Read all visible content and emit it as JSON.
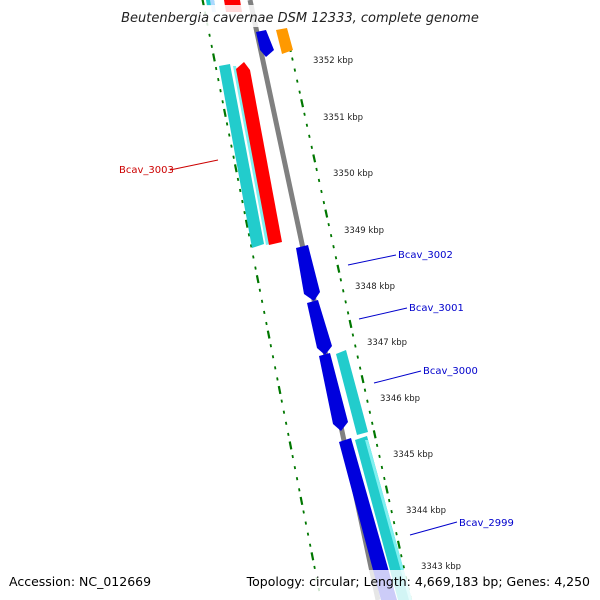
{
  "title": "Beutenbergia cavernae DSM 12333, complete genome",
  "footer": {
    "accession": "Accession: NC_012669",
    "summary": "Topology: circular; Length: 4,669,183 bp; Genes: 4,250"
  },
  "colors": {
    "forward_cds": "#ff0000",
    "reverse_cds": "#0000dd",
    "rna": "#ff9900",
    "forward_feature": "#22cccc",
    "ruler": "#007700",
    "backbone": "#808080"
  },
  "ticks": [
    {
      "label": "3352 kbp"
    },
    {
      "label": "3351 kbp"
    },
    {
      "label": "3350 kbp"
    },
    {
      "label": "3349 kbp"
    },
    {
      "label": "3348 kbp"
    },
    {
      "label": "3347 kbp"
    },
    {
      "label": "3346 kbp"
    },
    {
      "label": "3345 kbp"
    },
    {
      "label": "3344 kbp"
    },
    {
      "label": "3343 kbp"
    }
  ],
  "gene_labels": [
    {
      "name": "Bcav_3003",
      "color": "#cc0000"
    },
    {
      "name": "Bcav_3002",
      "color": "#0000cc"
    },
    {
      "name": "Bcav_3001",
      "color": "#0000cc"
    },
    {
      "name": "Bcav_3000",
      "color": "#0000cc"
    },
    {
      "name": "Bcav_2999",
      "color": "#0000cc"
    }
  ]
}
